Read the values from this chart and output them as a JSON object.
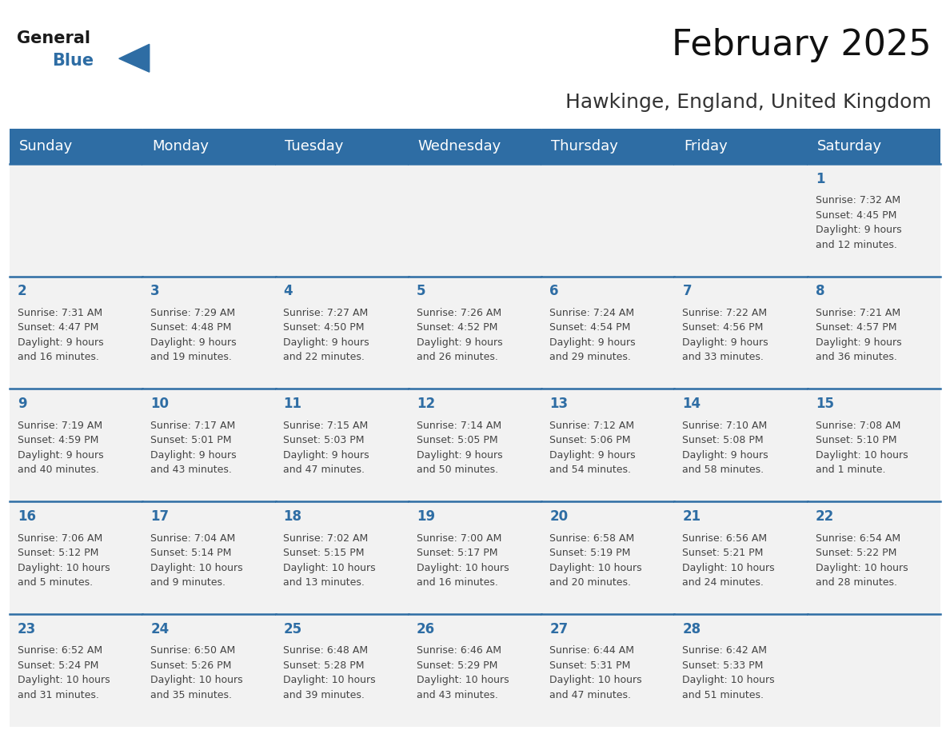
{
  "title": "February 2025",
  "subtitle": "Hawkinge, England, United Kingdom",
  "header_bg": "#2E6DA4",
  "header_text_color": "#FFFFFF",
  "cell_bg": "#F2F2F2",
  "line_color": "#2E6DA4",
  "day_number_color": "#2E6DA4",
  "info_text_color": "#444444",
  "days_of_week": [
    "Sunday",
    "Monday",
    "Tuesday",
    "Wednesday",
    "Thursday",
    "Friday",
    "Saturday"
  ],
  "weeks": [
    [
      {
        "day": null,
        "info": null
      },
      {
        "day": null,
        "info": null
      },
      {
        "day": null,
        "info": null
      },
      {
        "day": null,
        "info": null
      },
      {
        "day": null,
        "info": null
      },
      {
        "day": null,
        "info": null
      },
      {
        "day": 1,
        "info": "Sunrise: 7:32 AM\nSunset: 4:45 PM\nDaylight: 9 hours\nand 12 minutes."
      }
    ],
    [
      {
        "day": 2,
        "info": "Sunrise: 7:31 AM\nSunset: 4:47 PM\nDaylight: 9 hours\nand 16 minutes."
      },
      {
        "day": 3,
        "info": "Sunrise: 7:29 AM\nSunset: 4:48 PM\nDaylight: 9 hours\nand 19 minutes."
      },
      {
        "day": 4,
        "info": "Sunrise: 7:27 AM\nSunset: 4:50 PM\nDaylight: 9 hours\nand 22 minutes."
      },
      {
        "day": 5,
        "info": "Sunrise: 7:26 AM\nSunset: 4:52 PM\nDaylight: 9 hours\nand 26 minutes."
      },
      {
        "day": 6,
        "info": "Sunrise: 7:24 AM\nSunset: 4:54 PM\nDaylight: 9 hours\nand 29 minutes."
      },
      {
        "day": 7,
        "info": "Sunrise: 7:22 AM\nSunset: 4:56 PM\nDaylight: 9 hours\nand 33 minutes."
      },
      {
        "day": 8,
        "info": "Sunrise: 7:21 AM\nSunset: 4:57 PM\nDaylight: 9 hours\nand 36 minutes."
      }
    ],
    [
      {
        "day": 9,
        "info": "Sunrise: 7:19 AM\nSunset: 4:59 PM\nDaylight: 9 hours\nand 40 minutes."
      },
      {
        "day": 10,
        "info": "Sunrise: 7:17 AM\nSunset: 5:01 PM\nDaylight: 9 hours\nand 43 minutes."
      },
      {
        "day": 11,
        "info": "Sunrise: 7:15 AM\nSunset: 5:03 PM\nDaylight: 9 hours\nand 47 minutes."
      },
      {
        "day": 12,
        "info": "Sunrise: 7:14 AM\nSunset: 5:05 PM\nDaylight: 9 hours\nand 50 minutes."
      },
      {
        "day": 13,
        "info": "Sunrise: 7:12 AM\nSunset: 5:06 PM\nDaylight: 9 hours\nand 54 minutes."
      },
      {
        "day": 14,
        "info": "Sunrise: 7:10 AM\nSunset: 5:08 PM\nDaylight: 9 hours\nand 58 minutes."
      },
      {
        "day": 15,
        "info": "Sunrise: 7:08 AM\nSunset: 5:10 PM\nDaylight: 10 hours\nand 1 minute."
      }
    ],
    [
      {
        "day": 16,
        "info": "Sunrise: 7:06 AM\nSunset: 5:12 PM\nDaylight: 10 hours\nand 5 minutes."
      },
      {
        "day": 17,
        "info": "Sunrise: 7:04 AM\nSunset: 5:14 PM\nDaylight: 10 hours\nand 9 minutes."
      },
      {
        "day": 18,
        "info": "Sunrise: 7:02 AM\nSunset: 5:15 PM\nDaylight: 10 hours\nand 13 minutes."
      },
      {
        "day": 19,
        "info": "Sunrise: 7:00 AM\nSunset: 5:17 PM\nDaylight: 10 hours\nand 16 minutes."
      },
      {
        "day": 20,
        "info": "Sunrise: 6:58 AM\nSunset: 5:19 PM\nDaylight: 10 hours\nand 20 minutes."
      },
      {
        "day": 21,
        "info": "Sunrise: 6:56 AM\nSunset: 5:21 PM\nDaylight: 10 hours\nand 24 minutes."
      },
      {
        "day": 22,
        "info": "Sunrise: 6:54 AM\nSunset: 5:22 PM\nDaylight: 10 hours\nand 28 minutes."
      }
    ],
    [
      {
        "day": 23,
        "info": "Sunrise: 6:52 AM\nSunset: 5:24 PM\nDaylight: 10 hours\nand 31 minutes."
      },
      {
        "day": 24,
        "info": "Sunrise: 6:50 AM\nSunset: 5:26 PM\nDaylight: 10 hours\nand 35 minutes."
      },
      {
        "day": 25,
        "info": "Sunrise: 6:48 AM\nSunset: 5:28 PM\nDaylight: 10 hours\nand 39 minutes."
      },
      {
        "day": 26,
        "info": "Sunrise: 6:46 AM\nSunset: 5:29 PM\nDaylight: 10 hours\nand 43 minutes."
      },
      {
        "day": 27,
        "info": "Sunrise: 6:44 AM\nSunset: 5:31 PM\nDaylight: 10 hours\nand 47 minutes."
      },
      {
        "day": 28,
        "info": "Sunrise: 6:42 AM\nSunset: 5:33 PM\nDaylight: 10 hours\nand 51 minutes."
      },
      {
        "day": null,
        "info": null
      }
    ]
  ],
  "logo_general_color": "#1A1A1A",
  "logo_blue_color": "#2E6DA4",
  "title_fontsize": 32,
  "subtitle_fontsize": 18,
  "header_fontsize": 13,
  "day_num_fontsize": 12,
  "info_fontsize": 9
}
